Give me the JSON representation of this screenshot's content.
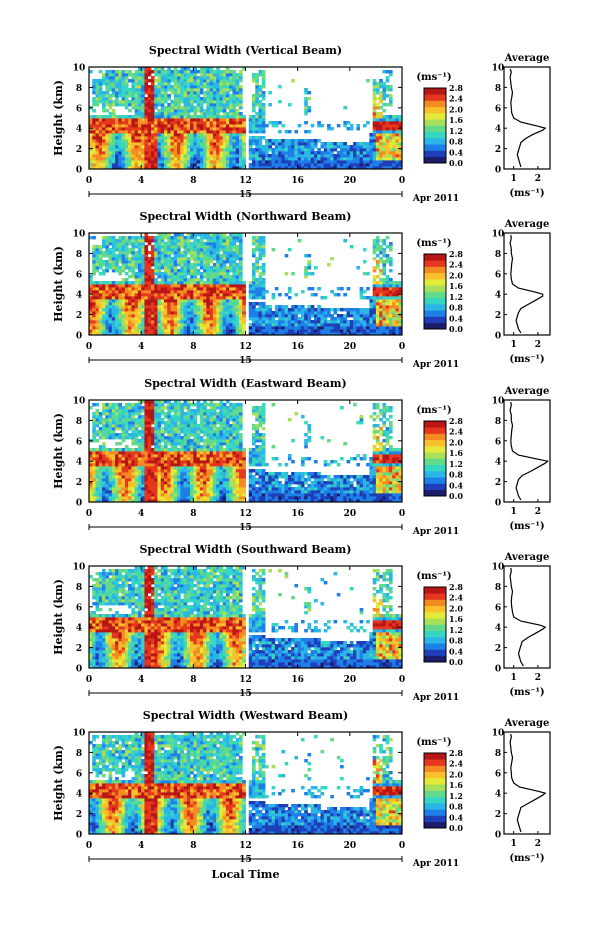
{
  "colorbar": {
    "unit": "(ms⁻¹)",
    "tick_labels": [
      "0.0",
      "0.4",
      "0.8",
      "1.2",
      "1.6",
      "2.0",
      "2.4",
      "2.8"
    ],
    "colors": [
      "#1c1c6a",
      "#1e3fb8",
      "#1f7fe8",
      "#2bb6e6",
      "#37d6c2",
      "#63d98a",
      "#a8e05a",
      "#e4ea3a",
      "#f8c02a",
      "#f48a22",
      "#e5361e",
      "#b81616"
    ]
  },
  "x_axis": {
    "ticks": [
      "0",
      "4",
      "8",
      "12",
      "16",
      "20",
      "0"
    ],
    "day_label": "15",
    "date_label": "Apr 2011",
    "xlabel": "Local Time"
  },
  "y_axis": {
    "label": "Height (km)",
    "ticks": [
      "0",
      "2",
      "4",
      "6",
      "8",
      "10"
    ]
  },
  "panels": [
    {
      "title": "Spectral Width (Vertical Beam)",
      "avg_title": "Average",
      "avg_xticks": [
        "1",
        "2"
      ],
      "avg_xlabel": "(ms⁻¹)"
    },
    {
      "title": "Spectral Width (Northward Beam)",
      "avg_title": "Average",
      "avg_xticks": [
        "1",
        "2"
      ],
      "avg_xlabel": "(ms⁻¹)"
    },
    {
      "title": "Spectral Width (Eastward Beam)",
      "avg_title": "Average",
      "avg_xticks": [
        "1",
        "2"
      ],
      "avg_xlabel": "(ms⁻¹)"
    },
    {
      "title": "Spectral Width (Southward Beam)",
      "avg_title": "Average",
      "avg_xticks": [
        "1",
        "2"
      ],
      "avg_xlabel": "(ms⁻¹)"
    },
    {
      "title": "Spectral Width (Westward Beam)",
      "avg_title": "Average",
      "avg_xticks": [
        "1",
        "2"
      ],
      "avg_xlabel": "(ms⁻¹)"
    }
  ],
  "chart_data": {
    "type": "heatmap",
    "x_unit": "local time (h)",
    "xlim": [
      0,
      24
    ],
    "ylim": [
      0,
      10
    ],
    "clim": [
      0.0,
      2.8
    ],
    "profile_xlim": [
      0.6,
      2.5
    ],
    "profile": {
      "height_km": [
        0.2,
        0.6,
        1.0,
        1.4,
        1.8,
        2.2,
        2.6,
        3.0,
        3.4,
        3.8,
        4.0,
        4.2,
        4.6,
        5.0,
        5.5,
        6.0,
        6.5,
        7.0,
        7.5,
        8.0,
        8.5,
        9.0,
        9.5,
        9.8
      ],
      "vertical": [
        1.3,
        1.25,
        1.2,
        1.15,
        1.2,
        1.25,
        1.3,
        1.5,
        1.8,
        2.2,
        2.3,
        2.0,
        1.3,
        1.0,
        0.92,
        0.9,
        0.88,
        0.92,
        0.95,
        0.9,
        0.88,
        0.85,
        0.9,
        0.85
      ],
      "northward": [
        1.3,
        1.2,
        1.15,
        1.1,
        1.15,
        1.2,
        1.3,
        1.6,
        1.9,
        2.2,
        2.2,
        1.9,
        1.2,
        0.95,
        0.9,
        0.88,
        0.9,
        0.92,
        0.95,
        0.9,
        0.9,
        0.85,
        0.9,
        0.88
      ],
      "eastward": [
        1.3,
        1.2,
        1.15,
        1.1,
        1.15,
        1.2,
        1.35,
        1.7,
        2.0,
        2.3,
        2.4,
        2.0,
        1.2,
        0.95,
        0.9,
        0.88,
        0.9,
        0.92,
        0.95,
        0.9,
        0.9,
        0.85,
        0.9,
        0.88
      ],
      "southward": [
        1.4,
        1.3,
        1.25,
        1.2,
        1.25,
        1.3,
        1.35,
        1.6,
        1.9,
        2.2,
        2.3,
        2.1,
        1.3,
        1.0,
        0.95,
        0.92,
        0.9,
        0.92,
        0.95,
        0.9,
        0.88,
        0.85,
        0.9,
        0.88
      ],
      "westward": [
        1.3,
        1.25,
        1.2,
        1.15,
        1.2,
        1.25,
        1.3,
        1.6,
        1.9,
        2.2,
        2.3,
        2.0,
        1.25,
        1.0,
        0.92,
        0.9,
        0.88,
        0.92,
        0.95,
        0.9,
        0.88,
        0.85,
        0.9,
        0.88
      ]
    }
  }
}
